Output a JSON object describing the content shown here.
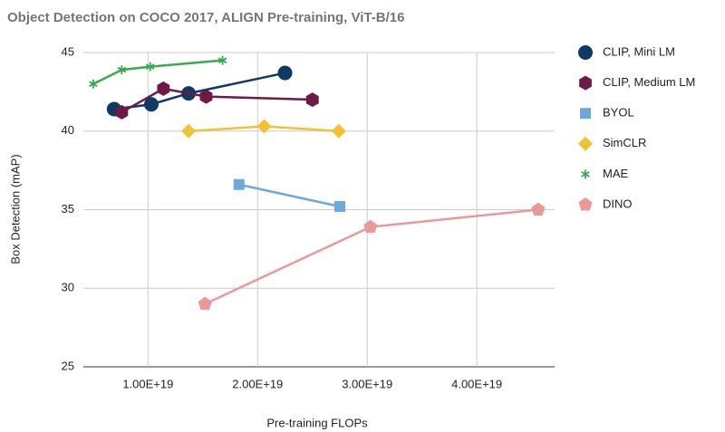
{
  "chart_data": {
    "type": "line",
    "title": "Object Detection on COCO 2017, ALIGN Pre-training, ViT-B/16",
    "x_label": "Pre-training FLOPs",
    "y_label": "Box Detection (mAP)",
    "xlim": [
      4.1e+18,
      4.71e+19
    ],
    "ylim": [
      25,
      45
    ],
    "xticks": [
      {
        "value": 1e+19,
        "label": "1.00E+19"
      },
      {
        "value": 2e+19,
        "label": "2.00E+19"
      },
      {
        "value": 3e+19,
        "label": "3.00E+19"
      },
      {
        "value": 4e+19,
        "label": "4.00E+19"
      }
    ],
    "yticks": [
      25,
      30,
      35,
      40,
      45
    ],
    "grid": true,
    "legend": "right",
    "series": [
      {
        "name": "CLIP, Mini LM",
        "color": "#0e3a66",
        "marker": "circle",
        "x": [
          6.9e+18,
          1.03e+19,
          1.37e+19,
          2.25e+19
        ],
        "values": [
          41.4,
          41.7,
          42.4,
          43.7
        ]
      },
      {
        "name": "CLIP, Medium LM",
        "color": "#6d1a47",
        "marker": "hexagon",
        "x": [
          7.6e+18,
          1.14e+19,
          1.53e+19,
          2.5e+19
        ],
        "values": [
          41.2,
          42.7,
          42.2,
          42.0
        ]
      },
      {
        "name": "BYOL",
        "color": "#6fa8dc",
        "marker": "square",
        "x": [
          1.83e+19,
          2.75e+19
        ],
        "values": [
          36.6,
          35.2
        ]
      },
      {
        "name": "SimCLR",
        "color": "#f1c232",
        "marker": "diamond",
        "x": [
          1.37e+19,
          2.06e+19,
          2.74e+19
        ],
        "values": [
          40.0,
          40.3,
          40.0
        ]
      },
      {
        "name": "MAE",
        "color": "#3aaa4a",
        "marker": "star",
        "x": [
          5e+18,
          7.6e+18,
          1.02e+19,
          1.68e+19
        ],
        "values": [
          43.0,
          43.9,
          44.1,
          44.5
        ]
      },
      {
        "name": "DINO",
        "color": "#ea9999",
        "marker": "pentagon",
        "x": [
          1.52e+19,
          3.03e+19,
          4.56e+19
        ],
        "values": [
          29.0,
          33.9,
          35.0
        ]
      }
    ]
  }
}
